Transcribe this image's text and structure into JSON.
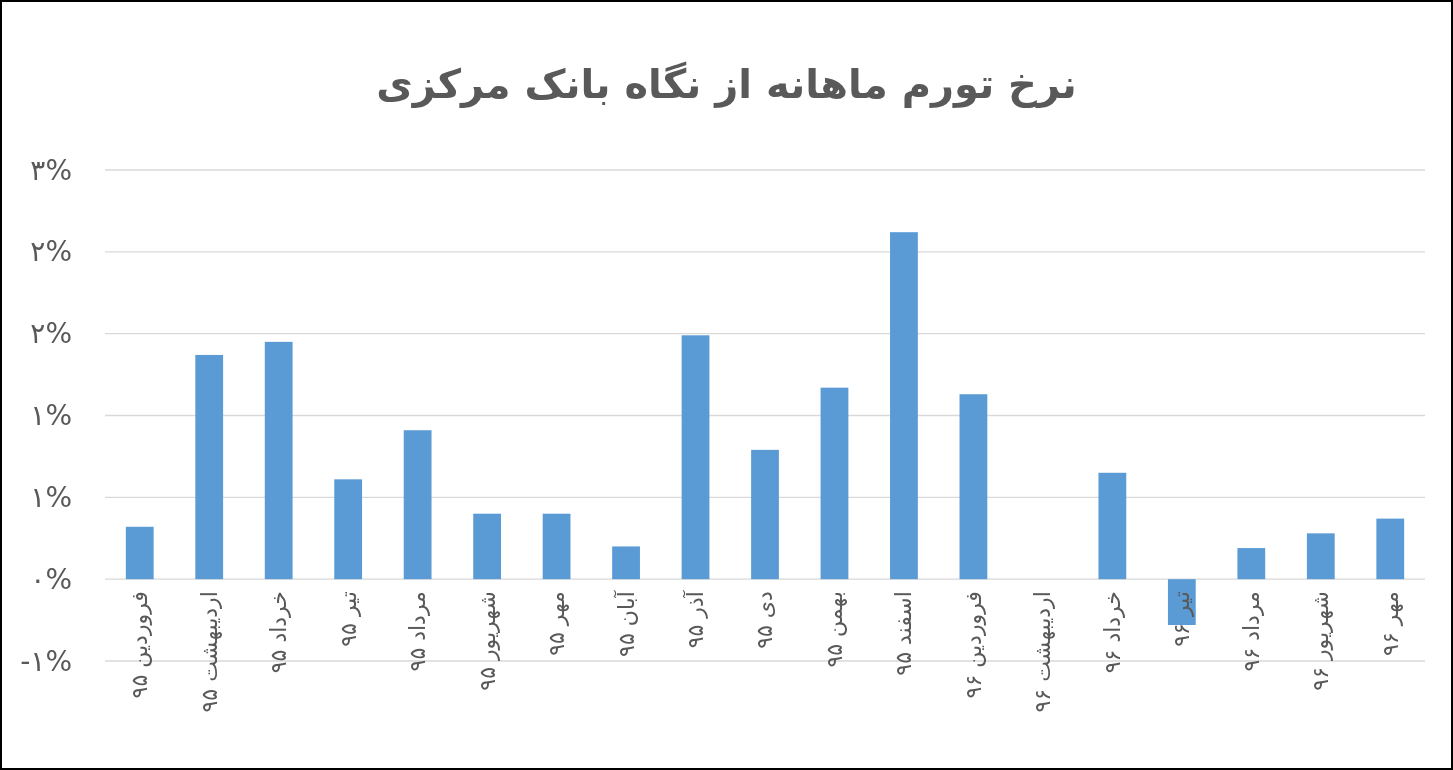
{
  "chart_data": {
    "type": "bar",
    "title": "نرخ تورم ماهانه از نگاه بانک مرکزی",
    "categories": [
      "فروردین ۹۵",
      "اردیبهشت ۹۵",
      "خرداد ۹۵",
      "تیر ۹۵",
      "مرداد ۹۵",
      "شهریور ۹۵",
      "مهر ۹۵",
      "آبان ۹۵",
      "آذر ۹۵",
      "دی ۹۵",
      "بهمن ۹۵",
      "اسفند ۹۵",
      "فروردین ۹۶",
      "اردیبهشت ۹۶",
      "خرداد ۹۶",
      "تیر ۹۶",
      "مرداد ۹۶",
      "شهریور ۹۶",
      "مهر ۹۶"
    ],
    "values": [
      0.32,
      1.37,
      1.45,
      0.61,
      0.91,
      0.4,
      0.4,
      0.2,
      1.49,
      0.79,
      1.17,
      2.12,
      1.13,
      0,
      0.65,
      -0.28,
      0.19,
      0.28,
      0.37
    ],
    "color": "#5b9bd5",
    "ylim": [
      -0.5,
      2.5
    ],
    "yticks": [
      {
        "value": -0.5,
        "label": "-۱%"
      },
      {
        "value": 0,
        "label": "۰%"
      },
      {
        "value": 0.5,
        "label": "۱%"
      },
      {
        "value": 1,
        "label": "۱%"
      },
      {
        "value": 1.5,
        "label": "۲%"
      },
      {
        "value": 2,
        "label": "۲%"
      },
      {
        "value": 2.5,
        "label": "۳%"
      }
    ],
    "grid": "y"
  }
}
